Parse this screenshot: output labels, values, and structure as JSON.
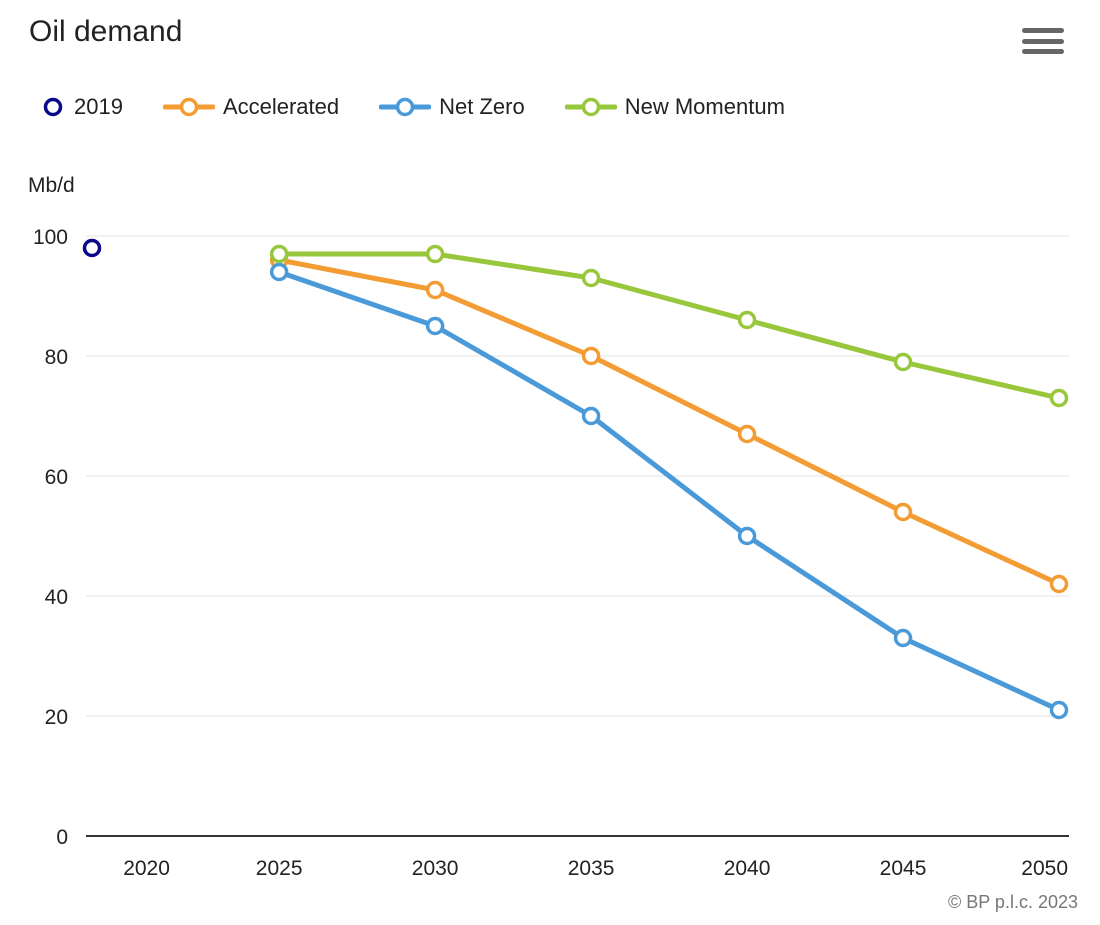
{
  "header": {
    "title": "Oil demand",
    "menu_icon": "hamburger-menu-icon"
  },
  "credit": "© BP p.l.c. 2023",
  "chart_data": {
    "type": "line",
    "title": "Oil demand",
    "ylabel": "Mb/d",
    "xlabel": "",
    "x_ticks": [
      2020,
      2025,
      2030,
      2035,
      2040,
      2045,
      2050
    ],
    "xlim": [
      2019,
      2050
    ],
    "ylim": [
      0,
      100
    ],
    "y_ticks": [
      0,
      20,
      40,
      60,
      80,
      100
    ],
    "grid": true,
    "legend_position": "top-left",
    "series": [
      {
        "name": "2019",
        "color": "#0a0a8c",
        "line": false,
        "points": [
          [
            2019,
            98
          ]
        ]
      },
      {
        "name": "Accelerated",
        "color": "#f39c33",
        "line": true,
        "points": [
          [
            2025,
            96
          ],
          [
            2030,
            91
          ],
          [
            2035,
            80
          ],
          [
            2040,
            67
          ],
          [
            2045,
            54
          ],
          [
            2050,
            42
          ]
        ]
      },
      {
        "name": "Net Zero",
        "color": "#4a9ad9",
        "line": true,
        "points": [
          [
            2025,
            94
          ],
          [
            2030,
            85
          ],
          [
            2035,
            70
          ],
          [
            2040,
            50
          ],
          [
            2045,
            33
          ],
          [
            2050,
            21
          ]
        ]
      },
      {
        "name": "New Momentum",
        "color": "#98c73c",
        "line": true,
        "points": [
          [
            2025,
            97
          ],
          [
            2030,
            97
          ],
          [
            2035,
            93
          ],
          [
            2040,
            86
          ],
          [
            2045,
            79
          ],
          [
            2050,
            73
          ]
        ]
      }
    ]
  }
}
